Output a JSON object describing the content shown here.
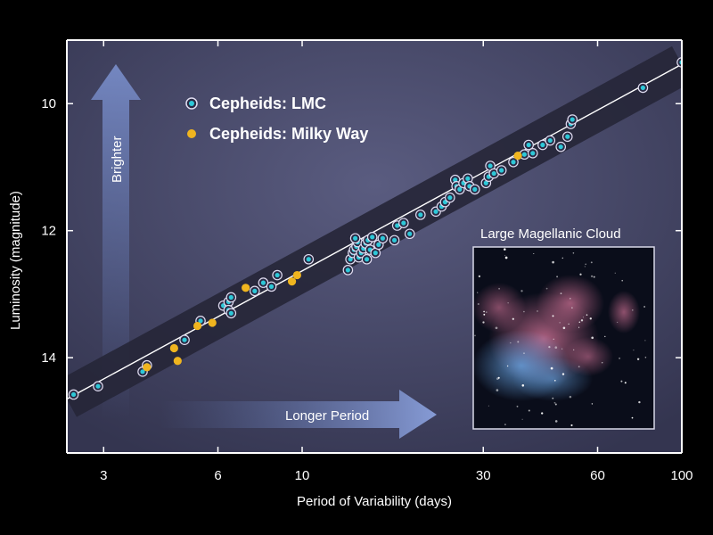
{
  "chart_data": {
    "type": "scatter",
    "xlabel": "Period of Variability (days)",
    "ylabel": "Luminosity (magnitude)",
    "x_scale": "log",
    "xlim": [
      2.4,
      100
    ],
    "ylim": [
      15.5,
      9.0
    ],
    "y_inverted": true,
    "x_ticks": [
      3,
      6,
      10,
      30,
      60,
      100
    ],
    "y_ticks": [
      10,
      12,
      14
    ],
    "grid": false,
    "legend_position": "top-left",
    "colors": {
      "plot_bg": "#3e3f5e",
      "band": "#262638",
      "lmc": "#2ec8d8",
      "milky_way": "#f0b51f",
      "marker_ring": "#e0dcf0"
    },
    "series": [
      {
        "name": "Cepheids: LMC",
        "points": [
          [
            2.5,
            14.58
          ],
          [
            2.9,
            14.45
          ],
          [
            3.8,
            14.22
          ],
          [
            3.9,
            14.12
          ],
          [
            4.9,
            13.72
          ],
          [
            5.4,
            13.42
          ],
          [
            6.2,
            13.18
          ],
          [
            6.4,
            13.12
          ],
          [
            6.5,
            13.05
          ],
          [
            6.4,
            13.25
          ],
          [
            6.5,
            13.3
          ],
          [
            7.5,
            12.95
          ],
          [
            7.9,
            12.82
          ],
          [
            8.3,
            12.88
          ],
          [
            8.6,
            12.7
          ],
          [
            10.4,
            12.45
          ],
          [
            13.2,
            12.62
          ],
          [
            13.4,
            12.45
          ],
          [
            13.6,
            12.35
          ],
          [
            13.7,
            12.3
          ],
          [
            13.9,
            12.25
          ],
          [
            14.0,
            12.18
          ],
          [
            14.1,
            12.42
          ],
          [
            14.3,
            12.35
          ],
          [
            14.5,
            12.28
          ],
          [
            14.7,
            12.2
          ],
          [
            14.9,
            12.15
          ],
          [
            15.1,
            12.3
          ],
          [
            15.3,
            12.1
          ],
          [
            15.6,
            12.35
          ],
          [
            15.9,
            12.22
          ],
          [
            16.3,
            12.12
          ],
          [
            13.8,
            12.12
          ],
          [
            14.8,
            12.45
          ],
          [
            17.5,
            12.15
          ],
          [
            17.8,
            11.92
          ],
          [
            18.5,
            11.88
          ],
          [
            19.2,
            12.05
          ],
          [
            20.5,
            11.75
          ],
          [
            22.5,
            11.7
          ],
          [
            23.3,
            11.62
          ],
          [
            23.8,
            11.55
          ],
          [
            24.5,
            11.48
          ],
          [
            25.3,
            11.2
          ],
          [
            25.5,
            11.3
          ],
          [
            26.0,
            11.35
          ],
          [
            26.6,
            11.25
          ],
          [
            27.3,
            11.18
          ],
          [
            27.6,
            11.3
          ],
          [
            28.5,
            11.35
          ],
          [
            30.5,
            11.25
          ],
          [
            31.0,
            11.15
          ],
          [
            31.3,
            10.98
          ],
          [
            32.0,
            11.1
          ],
          [
            33.5,
            11.05
          ],
          [
            36.0,
            10.92
          ],
          [
            38.5,
            10.8
          ],
          [
            39.5,
            10.65
          ],
          [
            40.5,
            10.78
          ],
          [
            43.0,
            10.65
          ],
          [
            45.0,
            10.58
          ],
          [
            48.0,
            10.68
          ],
          [
            50.0,
            10.52
          ],
          [
            51.0,
            10.32
          ],
          [
            51.5,
            10.25
          ],
          [
            79.0,
            9.75
          ],
          [
            100.0,
            9.35
          ]
        ]
      },
      {
        "name": "Cepheids: Milky Way",
        "points": [
          [
            3.9,
            14.15
          ],
          [
            4.6,
            13.85
          ],
          [
            4.7,
            14.05
          ],
          [
            5.3,
            13.5
          ],
          [
            5.8,
            13.45
          ],
          [
            7.1,
            12.9
          ],
          [
            9.4,
            12.8
          ],
          [
            9.7,
            12.7
          ],
          [
            37.0,
            10.82
          ]
        ]
      }
    ],
    "trend_line": {
      "x": [
        2.4,
        100
      ],
      "y": [
        14.65,
        9.38
      ]
    }
  },
  "annotations": {
    "brighter": "Brighter",
    "longer_period": "Longer Period",
    "inset_caption": "Large Magellanic Cloud"
  }
}
